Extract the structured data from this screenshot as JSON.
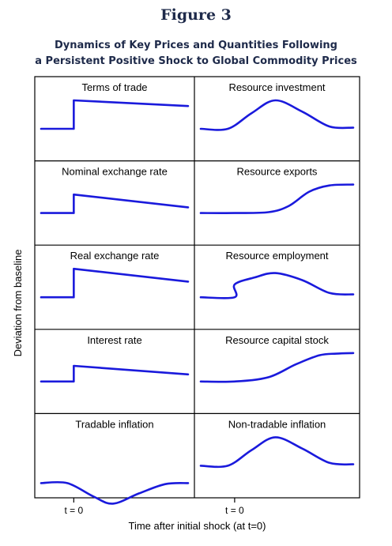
{
  "figure": {
    "label": "Figure 3",
    "title_line1": "Dynamics of Key Prices and Quantities Following",
    "title_line2": "a Persistent Positive Shock to Global Commodity Prices"
  },
  "axes": {
    "ylabel": "Deviation from baseline",
    "xlabel": "Time after initial shock (at t=0)",
    "tick_label": "t = 0"
  },
  "colors": {
    "line": "#1a1adc",
    "frame": "#000000"
  },
  "chart_data": [
    {
      "type": "line",
      "title": "Terms of trade",
      "x": [
        0,
        1,
        1,
        4.5
      ],
      "y": [
        0,
        0,
        1.0,
        0.8
      ]
    },
    {
      "type": "line",
      "title": "Resource investment",
      "x": [
        0,
        0.8,
        1.5,
        2.2,
        3,
        3.8,
        4.5
      ],
      "y": [
        0,
        0,
        0.55,
        1.0,
        0.6,
        0.08,
        0.04
      ]
    },
    {
      "type": "line",
      "title": "Nominal exchange rate",
      "x": [
        0,
        1,
        1,
        4.5
      ],
      "y": [
        0,
        0,
        0.65,
        0.2
      ]
    },
    {
      "type": "line",
      "title": "Resource exports",
      "x": [
        0,
        1,
        2,
        2.6,
        3.2,
        3.8,
        4.5
      ],
      "y": [
        0,
        0,
        0.03,
        0.25,
        0.75,
        0.97,
        1.0
      ]
    },
    {
      "type": "line",
      "title": "Real exchange rate",
      "x": [
        0,
        1,
        1,
        4.5
      ],
      "y": [
        0,
        0,
        1.0,
        0.55
      ]
    },
    {
      "type": "line",
      "title": "Resource employment",
      "x": [
        0,
        1,
        1,
        1.6,
        2.2,
        3,
        3.8,
        4.5
      ],
      "y": [
        0,
        0,
        0.45,
        0.7,
        0.85,
        0.6,
        0.15,
        0.1
      ]
    },
    {
      "type": "line",
      "title": "Interest rate",
      "x": [
        0,
        1,
        1,
        4.5
      ],
      "y": [
        0,
        0,
        0.55,
        0.25
      ]
    },
    {
      "type": "line",
      "title": "Resource capital stock",
      "x": [
        0,
        1,
        2,
        2.8,
        3.5,
        4,
        4.5
      ],
      "y": [
        0,
        0,
        0.15,
        0.6,
        0.92,
        0.98,
        1.0
      ]
    },
    {
      "type": "line",
      "title": "Tradable inflation",
      "x": [
        0,
        0.8,
        1.6,
        2.2,
        3,
        3.8,
        4.5
      ],
      "y": [
        0,
        0,
        -0.65,
        -1.0,
        -0.5,
        -0.05,
        0
      ]
    },
    {
      "type": "line",
      "title": "Non-tradable inflation",
      "x": [
        0,
        0.8,
        1.5,
        2.2,
        3,
        3.8,
        4.5
      ],
      "y": [
        0,
        0,
        0.55,
        1.0,
        0.6,
        0.1,
        0.05
      ]
    }
  ]
}
